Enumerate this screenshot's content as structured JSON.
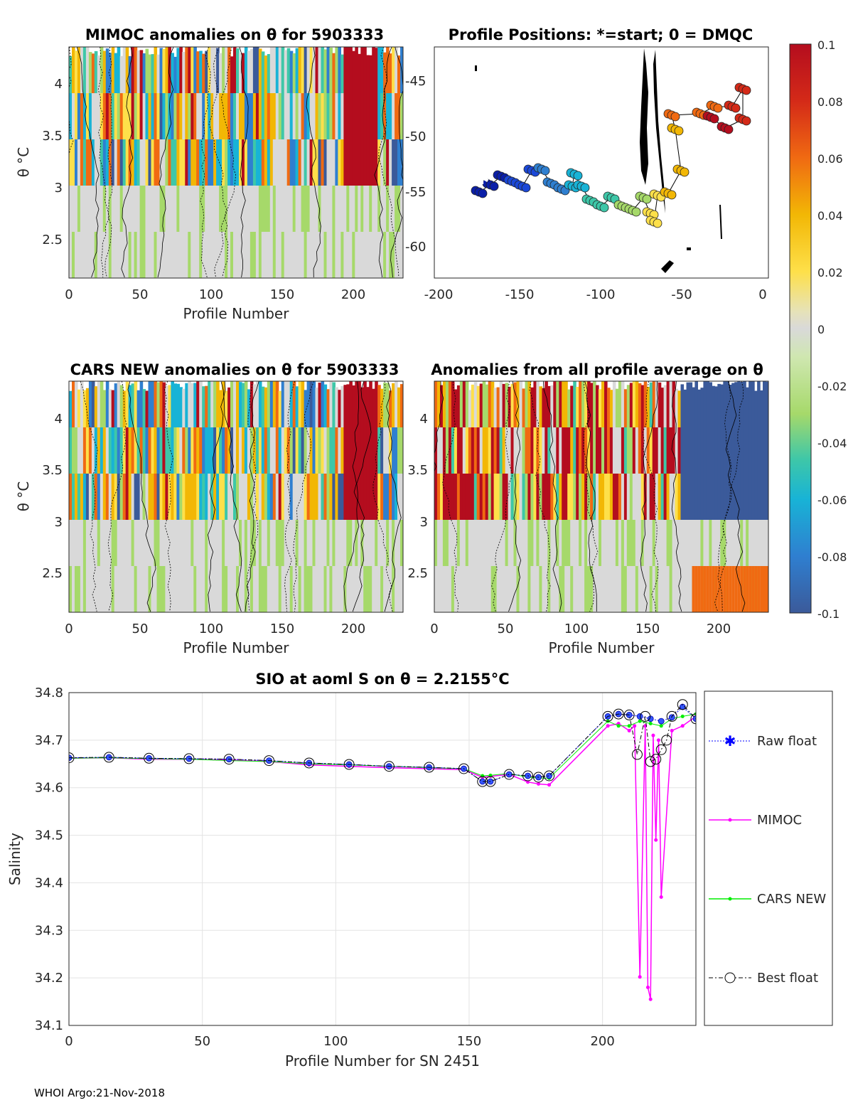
{
  "panels": {
    "mimoc": {
      "title": "MIMOC anomalies on θ  for 5903333",
      "xlabel": "Profile Number",
      "ylabel": "θ °C",
      "xticks": [
        "0",
        "50",
        "100",
        "150",
        "200"
      ],
      "yticks": [
        "4",
        "3.5",
        "3",
        "2.5"
      ]
    },
    "positions": {
      "title": "Profile Positions: *=start; 0 = DMQC",
      "xticks": [
        "-200",
        "-150",
        "-100",
        "-50",
        "0"
      ],
      "yticks": [
        "-45",
        "-50",
        "-55",
        "-60"
      ]
    },
    "cars": {
      "title": "CARS NEW anomalies on θ for 5903333",
      "xlabel": "Profile Number",
      "ylabel": "θ °C",
      "xticks": [
        "0",
        "50",
        "100",
        "150",
        "200"
      ],
      "yticks": [
        "4",
        "3.5",
        "3",
        "2.5"
      ]
    },
    "avg": {
      "title": "Anomalies from all profile average on θ",
      "xlabel": "Profile Number",
      "xticks": [
        "0",
        "50",
        "100",
        "150",
        "200"
      ],
      "yticks": [
        "4",
        "3.5",
        "3",
        "2.5"
      ]
    }
  },
  "colorbar": {
    "ticks": [
      "0.1",
      "0.08",
      "0.06",
      "0.04",
      "0.02",
      "0",
      "-0.02",
      "-0.04",
      "-0.06",
      "-0.08",
      "-0.1"
    ],
    "colors": [
      "#3b5a9a",
      "#2f7fd0",
      "#18b3d6",
      "#3ec7a8",
      "#a6d96a",
      "#d9d9d9",
      "#d9d9d9",
      "#fee04a",
      "#f2b705",
      "#f06a12",
      "#b40d1e"
    ]
  },
  "chart_data": {
    "type": "line",
    "title": "SIO at aoml S on θ = 2.2155°C",
    "xlabel": "Profile Number for SN 2451",
    "ylabel": "Salinity",
    "xlim": [
      0,
      235
    ],
    "ylim": [
      34.1,
      34.8
    ],
    "xticks": [
      "0",
      "50",
      "100",
      "150",
      "200"
    ],
    "yticks": [
      "34.8",
      "34.7",
      "34.6",
      "34.5",
      "34.4",
      "34.3",
      "34.2",
      "34.1"
    ],
    "series": [
      {
        "name": "Raw float",
        "color": "#0000ff",
        "x": [
          0,
          15,
          30,
          45,
          60,
          75,
          90,
          105,
          120,
          135,
          148,
          155,
          158,
          165,
          172,
          176,
          180,
          202,
          206,
          210,
          214,
          218,
          222,
          226,
          230,
          235
        ],
        "y": [
          34.663,
          34.664,
          34.662,
          34.661,
          34.66,
          34.657,
          34.652,
          34.649,
          34.645,
          34.643,
          34.64,
          34.613,
          34.613,
          34.628,
          34.625,
          34.622,
          34.625,
          34.75,
          34.755,
          34.753,
          34.75,
          34.745,
          34.74,
          34.748,
          34.77,
          34.745
        ]
      },
      {
        "name": "MIMOC",
        "color": "#ff00ff",
        "x": [
          0,
          15,
          30,
          45,
          60,
          75,
          90,
          105,
          120,
          135,
          148,
          155,
          158,
          165,
          172,
          176,
          180,
          202,
          206,
          210,
          212,
          214,
          216,
          217,
          218,
          219,
          220,
          221,
          222,
          226,
          230,
          235
        ],
        "y": [
          34.662,
          34.663,
          34.66,
          34.66,
          34.658,
          34.655,
          34.648,
          34.645,
          34.642,
          34.64,
          34.638,
          34.622,
          34.624,
          34.628,
          34.612,
          34.608,
          34.606,
          34.73,
          34.735,
          34.72,
          34.73,
          34.202,
          34.73,
          34.18,
          34.155,
          34.71,
          34.49,
          34.7,
          34.37,
          34.72,
          34.73,
          34.75
        ]
      },
      {
        "name": "CARS NEW",
        "color": "#00ee00",
        "x": [
          0,
          15,
          30,
          45,
          60,
          75,
          90,
          105,
          120,
          135,
          148,
          155,
          158,
          165,
          172,
          176,
          180,
          202,
          206,
          210,
          214,
          218,
          222,
          226,
          230,
          235
        ],
        "y": [
          34.662,
          34.663,
          34.661,
          34.66,
          34.657,
          34.655,
          34.65,
          34.648,
          34.645,
          34.642,
          34.64,
          34.625,
          34.626,
          34.63,
          34.622,
          34.62,
          34.62,
          34.74,
          34.73,
          34.73,
          34.74,
          34.735,
          34.73,
          34.745,
          34.75,
          34.755
        ]
      },
      {
        "name": "Best float",
        "color": "#000000",
        "x": [
          0,
          15,
          30,
          45,
          60,
          75,
          90,
          105,
          120,
          135,
          148,
          155,
          158,
          165,
          172,
          176,
          180,
          202,
          206,
          210,
          213,
          216,
          218,
          220,
          222,
          224,
          226,
          230,
          235
        ],
        "y": [
          34.663,
          34.664,
          34.662,
          34.661,
          34.66,
          34.657,
          34.652,
          34.649,
          34.645,
          34.643,
          34.64,
          34.613,
          34.613,
          34.628,
          34.625,
          34.622,
          34.625,
          34.75,
          34.755,
          34.753,
          34.67,
          34.75,
          34.655,
          34.66,
          34.68,
          34.7,
          34.75,
          34.775,
          34.745
        ]
      }
    ]
  },
  "legend": [
    "Raw float",
    "MIMOC",
    "CARS NEW",
    "Best float"
  ],
  "footer": "WHOI Argo:21-Nov-2018"
}
